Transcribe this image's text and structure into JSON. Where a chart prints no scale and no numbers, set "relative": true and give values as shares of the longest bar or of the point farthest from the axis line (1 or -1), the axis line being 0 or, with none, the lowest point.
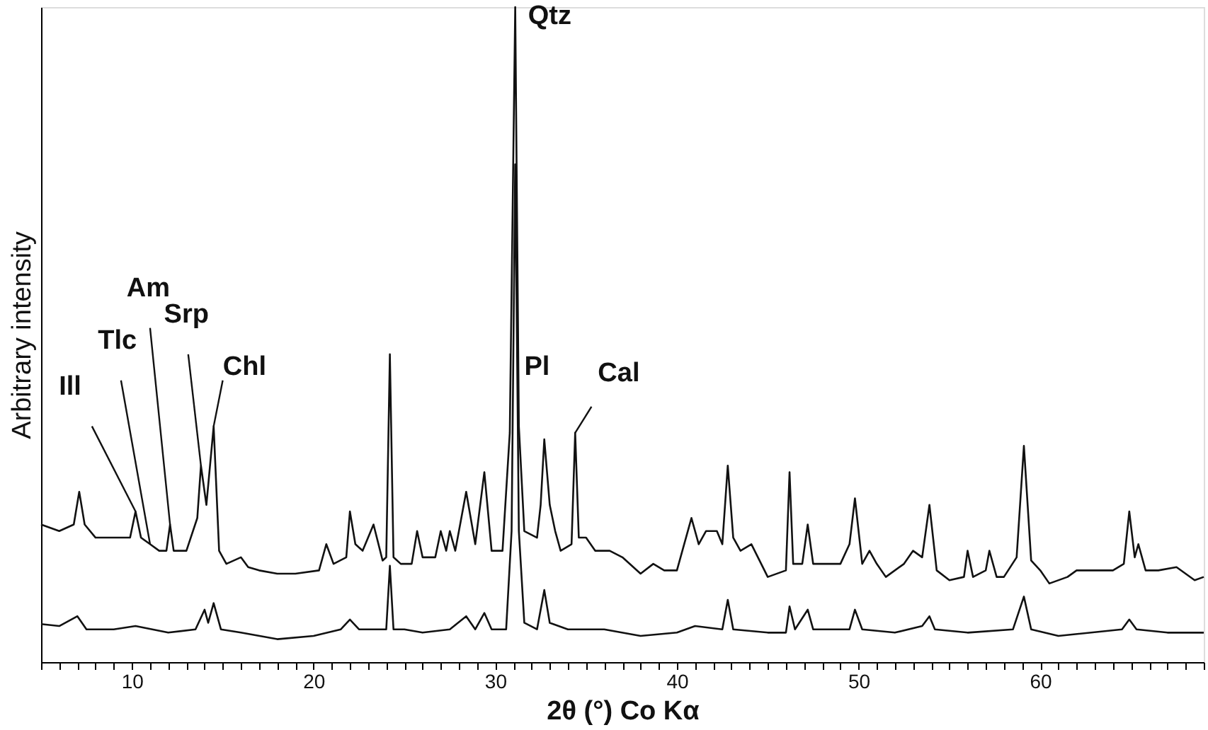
{
  "chart_data": {
    "type": "line",
    "relative": true,
    "xlabel": "2θ (°) Co Kα",
    "ylabel": "Arbitrary intensity",
    "xlim": [
      5,
      69
    ],
    "xticks": [
      {
        "value": 5,
        "label": null
      },
      {
        "value": 6,
        "label": null
      },
      {
        "value": 7,
        "label": null
      },
      {
        "value": 8,
        "label": null
      },
      {
        "value": 9,
        "label": null
      },
      10,
      {
        "value": 11,
        "label": null
      },
      {
        "value": 12,
        "label": null
      },
      {
        "value": 13,
        "label": null
      },
      {
        "value": 14,
        "label": null
      },
      {
        "value": 15,
        "label": null
      },
      {
        "value": 16,
        "label": null
      },
      {
        "value": 17,
        "label": null
      },
      {
        "value": 18,
        "label": null
      },
      {
        "value": 19,
        "label": null
      },
      20,
      {
        "value": 21,
        "label": null
      },
      {
        "value": 22,
        "label": null
      },
      {
        "value": 23,
        "label": null
      },
      {
        "value": 24,
        "label": null
      },
      {
        "value": 25,
        "label": null
      },
      {
        "value": 26,
        "label": null
      },
      {
        "value": 27,
        "label": null
      },
      {
        "value": 28,
        "label": null
      },
      {
        "value": 29,
        "label": null
      },
      30,
      {
        "value": 31,
        "label": null
      },
      {
        "value": 32,
        "label": null
      },
      {
        "value": 33,
        "label": null
      },
      {
        "value": 34,
        "label": null
      },
      {
        "value": 35,
        "label": null
      },
      {
        "value": 36,
        "label": null
      },
      {
        "value": 37,
        "label": null
      },
      {
        "value": 38,
        "label": null
      },
      {
        "value": 39,
        "label": null
      },
      40,
      {
        "value": 41,
        "label": null
      },
      {
        "value": 42,
        "label": null
      },
      {
        "value": 43,
        "label": null
      },
      {
        "value": 44,
        "label": null
      },
      {
        "value": 45,
        "label": null
      },
      {
        "value": 46,
        "label": null
      },
      {
        "value": 47,
        "label": null
      },
      {
        "value": 48,
        "label": null
      },
      {
        "value": 49,
        "label": null
      },
      50,
      {
        "value": 51,
        "label": null
      },
      {
        "value": 52,
        "label": null
      },
      {
        "value": 53,
        "label": null
      },
      {
        "value": 54,
        "label": null
      },
      {
        "value": 55,
        "label": null
      },
      {
        "value": 56,
        "label": null
      },
      {
        "value": 57,
        "label": null
      },
      {
        "value": 58,
        "label": null
      },
      {
        "value": 59,
        "label": null
      },
      60,
      {
        "value": 61,
        "label": null
      },
      {
        "value": 62,
        "label": null
      },
      {
        "value": 63,
        "label": null
      },
      {
        "value": 64,
        "label": null
      },
      {
        "value": 65,
        "label": null
      },
      {
        "value": 66,
        "label": null
      },
      {
        "value": 67,
        "label": null
      },
      {
        "value": 68,
        "label": null
      },
      {
        "value": 69,
        "label": null
      }
    ],
    "grid": false,
    "marker": "none",
    "line_style": "solid",
    "series": [
      {
        "color": "#111111",
        "x": [
          5,
          6,
          6.8,
          7.1,
          7.4,
          8,
          9,
          9.9,
          10.2,
          10.5,
          11,
          11.5,
          11.9,
          12.1,
          12.3,
          13,
          13.6,
          13.8,
          14.1,
          14.5,
          14.8,
          15.2,
          16,
          16.4,
          17,
          18,
          19,
          20.3,
          20.7,
          21.1,
          21.8,
          22,
          22.3,
          22.7,
          23.3,
          23.8,
          24.0,
          24.2,
          24.4,
          24.8,
          25.4,
          25.7,
          26,
          26.7,
          27.0,
          27.3,
          27.5,
          27.8,
          28.4,
          28.9,
          29.4,
          29.8,
          30.4,
          30.8,
          31.1,
          31.3,
          31.6,
          32.3,
          32.5,
          32.7,
          33.0,
          33.3,
          33.6,
          34.2,
          34.4,
          34.6,
          35,
          35.5,
          36.3,
          37,
          38,
          38.7,
          39.3,
          40,
          40.5,
          40.8,
          41.2,
          41.6,
          42.2,
          42.5,
          42.8,
          43.1,
          43.5,
          44.1,
          45,
          46,
          46.2,
          46.4,
          46.9,
          47.2,
          47.5,
          48,
          49,
          49.5,
          49.8,
          50.2,
          50.6,
          51,
          51.5,
          52.5,
          53,
          53.5,
          53.9,
          54.3,
          55,
          55.8,
          56,
          56.3,
          57.0,
          57.2,
          57.6,
          58,
          58.7,
          59.1,
          59.5,
          60,
          60.5,
          61.5,
          62,
          63,
          64,
          64.6,
          64.9,
          65.2,
          65.4,
          65.8,
          66.5,
          67.5,
          68.5,
          69
        ],
        "values": [
          0.21,
          0.2,
          0.21,
          0.26,
          0.21,
          0.19,
          0.19,
          0.19,
          0.23,
          0.19,
          0.18,
          0.17,
          0.17,
          0.21,
          0.17,
          0.17,
          0.22,
          0.3,
          0.24,
          0.36,
          0.17,
          0.15,
          0.16,
          0.145,
          0.14,
          0.135,
          0.135,
          0.14,
          0.18,
          0.15,
          0.16,
          0.23,
          0.18,
          0.17,
          0.21,
          0.155,
          0.16,
          0.47,
          0.16,
          0.15,
          0.15,
          0.2,
          0.16,
          0.16,
          0.2,
          0.17,
          0.2,
          0.17,
          0.26,
          0.18,
          0.29,
          0.17,
          0.17,
          0.35,
          1.0,
          0.36,
          0.2,
          0.19,
          0.24,
          0.34,
          0.24,
          0.2,
          0.17,
          0.18,
          0.35,
          0.19,
          0.19,
          0.17,
          0.17,
          0.16,
          0.135,
          0.15,
          0.14,
          0.14,
          0.19,
          0.22,
          0.18,
          0.2,
          0.2,
          0.18,
          0.3,
          0.19,
          0.17,
          0.18,
          0.13,
          0.14,
          0.29,
          0.15,
          0.15,
          0.21,
          0.15,
          0.15,
          0.15,
          0.18,
          0.25,
          0.15,
          0.17,
          0.15,
          0.13,
          0.15,
          0.17,
          0.16,
          0.24,
          0.14,
          0.125,
          0.13,
          0.17,
          0.13,
          0.14,
          0.17,
          0.13,
          0.13,
          0.16,
          0.33,
          0.155,
          0.14,
          0.12,
          0.13,
          0.14,
          0.14,
          0.14,
          0.15,
          0.23,
          0.16,
          0.18,
          0.14,
          0.14,
          0.145,
          0.125,
          0.13
        ]
      },
      {
        "color": "#111111",
        "x": [
          5,
          6,
          7,
          7.5,
          9,
          10.2,
          12,
          13.5,
          14,
          14.2,
          14.5,
          14.9,
          16,
          18,
          20,
          21.5,
          22,
          22.5,
          23.5,
          24.0,
          24.2,
          24.4,
          25,
          26,
          27.5,
          28.4,
          28.9,
          29.4,
          29.8,
          30.6,
          30.9,
          31.1,
          31.3,
          31.6,
          32.3,
          32.7,
          33.0,
          34,
          36,
          38,
          40,
          41,
          42.5,
          42.8,
          43.1,
          45,
          46,
          46.2,
          46.5,
          47.2,
          47.5,
          49.5,
          49.8,
          50.2,
          52,
          53.5,
          53.9,
          54.2,
          56,
          58.5,
          59.1,
          59.5,
          61,
          64.5,
          64.9,
          65.3,
          67,
          69
        ],
        "values": [
          0.058,
          0.055,
          0.07,
          0.05,
          0.05,
          0.055,
          0.045,
          0.05,
          0.08,
          0.06,
          0.09,
          0.05,
          0.045,
          0.035,
          0.04,
          0.05,
          0.065,
          0.05,
          0.05,
          0.05,
          0.147,
          0.05,
          0.05,
          0.045,
          0.05,
          0.07,
          0.05,
          0.075,
          0.05,
          0.05,
          0.2,
          0.76,
          0.2,
          0.06,
          0.05,
          0.11,
          0.06,
          0.05,
          0.05,
          0.04,
          0.045,
          0.055,
          0.05,
          0.095,
          0.05,
          0.045,
          0.045,
          0.085,
          0.05,
          0.08,
          0.05,
          0.05,
          0.08,
          0.05,
          0.045,
          0.055,
          0.07,
          0.05,
          0.045,
          0.05,
          0.1,
          0.05,
          0.04,
          0.05,
          0.065,
          0.05,
          0.045,
          0.045
        ]
      }
    ],
    "annotations": [
      {
        "text": "Ill",
        "x": 10.2,
        "y": 0.23
      },
      {
        "text": "Tlc",
        "x": 11,
        "y": 0.18
      },
      {
        "text": "Am",
        "x": 12.1,
        "y": 0.21
      },
      {
        "text": "Srp",
        "x": 13.8,
        "y": 0.3
      },
      {
        "text": "Chl",
        "x": 14.5,
        "y": 0.36
      },
      {
        "text": "Qtz",
        "x": 31.1,
        "y": 1.0
      },
      {
        "text": "Pl",
        "x": 32.7,
        "y": 0.34
      },
      {
        "text": "Cal",
        "x": 34.4,
        "y": 0.35
      }
    ]
  }
}
